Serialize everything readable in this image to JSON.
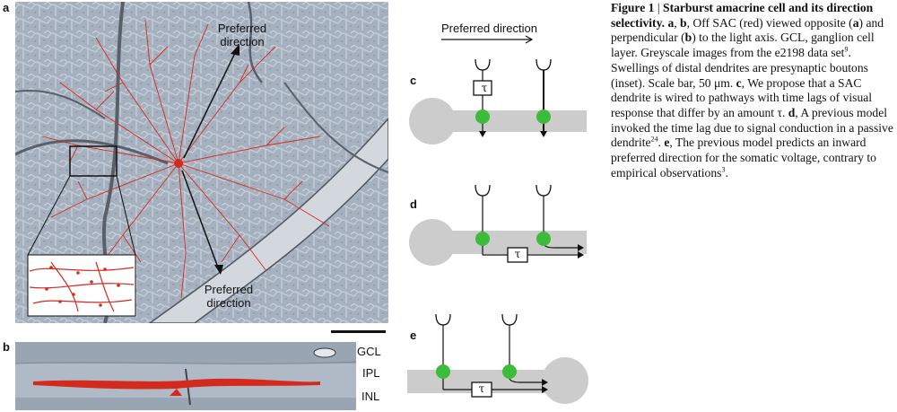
{
  "panels": {
    "a": "a",
    "b": "b",
    "c": "c",
    "d": "d",
    "e": "e"
  },
  "micrograph": {
    "preferred_top": "Preferred direction",
    "preferred_bottom": "Preferred direction",
    "layers": [
      "GCL",
      "IPL",
      "INL"
    ]
  },
  "schematic": {
    "preferred_direction": "Preferred direction",
    "tau": "τ"
  },
  "caption": {
    "figure_label": "Figure 1",
    "separator": "|",
    "title": "Starburst amacrine cell and its direction selectivity.",
    "segments": [
      {
        "t": " "
      },
      {
        "b": "a"
      },
      {
        "t": ", "
      },
      {
        "b": "b"
      },
      {
        "t": ", Off SAC (red) viewed opposite ("
      },
      {
        "b": "a"
      },
      {
        "t": ") and perpendicular ("
      },
      {
        "b": "b"
      },
      {
        "t": ") to the light axis. GCL, ganglion cell layer. Greyscale images from the e2198 data set"
      },
      {
        "s": "9"
      },
      {
        "t": ". Swellings of distal dendrites are presynaptic boutons (inset). Scale bar, 50 μm. "
      },
      {
        "b": "c"
      },
      {
        "t": ", We propose that a SAC dendrite is wired to pathways with time lags of visual response that differ by an amount τ. "
      },
      {
        "b": "d"
      },
      {
        "t": ", A previous model invoked the time lag due to signal conduction in a passive dendrite"
      },
      {
        "s": "24"
      },
      {
        "t": ". "
      },
      {
        "b": "e"
      },
      {
        "t": ", The previous model predicts an inward preferred direction for the somatic voltage, contrary to empirical observations"
      },
      {
        "s": "3"
      },
      {
        "t": "."
      }
    ]
  },
  "colors": {
    "sac_red": "#d42a1e",
    "tissue": "#a9b4c2",
    "dendrite_gray": "#cccccc",
    "synapse_green": "#3dbb3a"
  }
}
